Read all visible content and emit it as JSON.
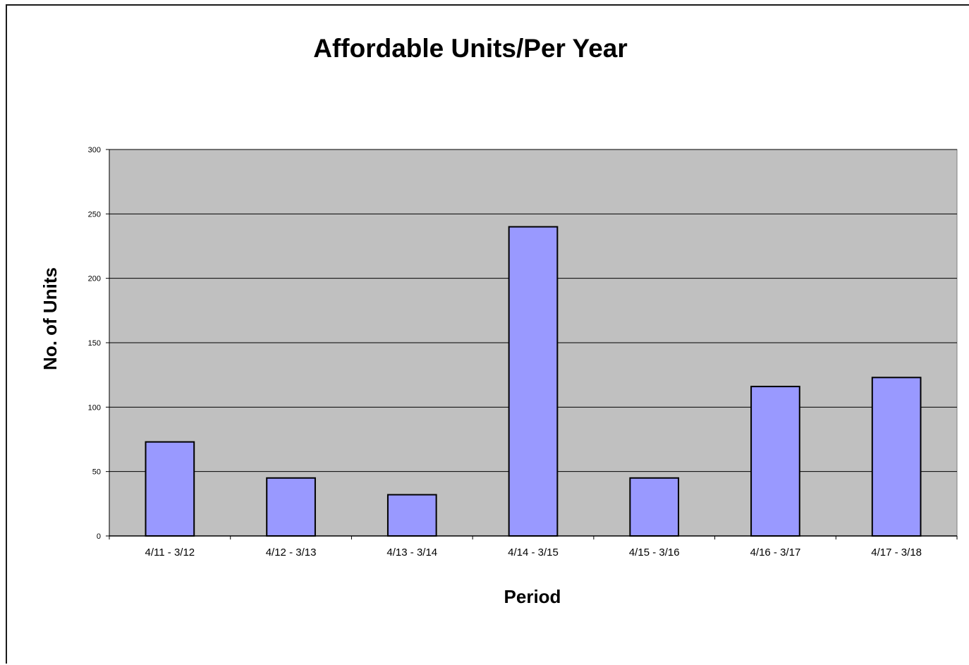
{
  "chart_data": {
    "type": "bar",
    "title": "Affordable Units/Per Year",
    "xlabel": "Period",
    "ylabel": "No. of Units",
    "categories": [
      "4/11 - 3/12",
      "4/12 - 3/13",
      "4/13 - 3/14",
      "4/14 - 3/15",
      "4/15 - 3/16",
      "4/16 - 3/17",
      "4/17 - 3/18"
    ],
    "values": [
      73,
      45,
      32,
      240,
      45,
      116,
      123
    ],
    "ylim": [
      0,
      300
    ],
    "yticks": [
      0,
      50,
      100,
      150,
      200,
      250,
      300
    ],
    "grid": true,
    "legend": "none",
    "colors": {
      "bar_fill": "#9999ff",
      "bar_stroke": "#000000",
      "plot_background": "#c0c0c0",
      "gridline": "#000000"
    }
  }
}
